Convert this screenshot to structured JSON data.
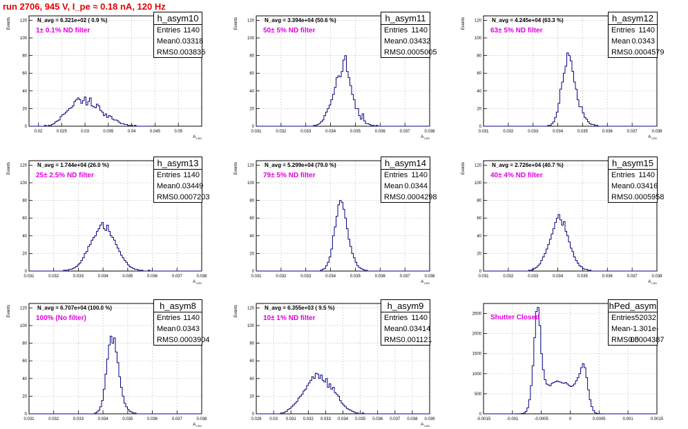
{
  "run_title": "run 2706,   945 V, I_pe ≈ 0.18 nA, 120 Hz",
  "colors": {
    "line": "#000080",
    "grid": "#c8c8c8",
    "filter_text": "#e000e0",
    "title": "#e00000"
  },
  "chart_data": [
    {
      "type": "histogram",
      "name": "h_asym10",
      "ylabel": "Events",
      "xlabel": "A_{LED}",
      "navg": "N_avg = 6.321e+02 ( 0.9 %)",
      "filter": "1± 0.1% ND filter",
      "stats": {
        "entries": "1140",
        "mean": "0.03318",
        "rms": "0.003836"
      },
      "xlim": [
        0.018,
        0.055
      ],
      "ylim": [
        0,
        125
      ],
      "xticks": [
        0.02,
        0.025,
        0.03,
        0.035,
        0.04,
        0.045,
        0.05
      ],
      "xtick_labels": [
        "0.02",
        "0.025",
        "0.03",
        "0.035",
        "0.04",
        "0.045",
        "0.05"
      ],
      "yticks": [
        0,
        20,
        40,
        60,
        80,
        100,
        120
      ],
      "ytick_labels": [
        "0",
        "20",
        "40",
        "60",
        "80",
        "100",
        "120"
      ],
      "bin_start": 0.018,
      "bin_width": 0.00037,
      "counts": [
        0,
        0,
        0,
        0,
        0,
        0,
        0,
        0,
        0,
        1,
        0,
        1,
        1,
        2,
        3,
        5,
        6,
        7,
        11,
        13,
        14,
        16,
        18,
        20,
        21,
        23,
        28,
        30,
        32,
        30,
        26,
        29,
        33,
        24,
        28,
        32,
        23,
        22,
        21,
        25,
        23,
        18,
        16,
        12,
        14,
        10,
        12,
        11,
        8,
        7,
        7,
        6,
        4,
        3,
        3,
        2,
        2,
        1,
        1,
        1,
        0,
        1,
        0,
        0,
        0,
        0,
        0,
        0,
        0,
        0
      ]
    },
    {
      "type": "histogram",
      "name": "h_asym11",
      "ylabel": "Events",
      "xlabel": "A_{LED}",
      "navg": "N_avg = 3.394e+04 (50.6 %)",
      "filter": "50± 5% ND filter",
      "stats": {
        "entries": "1140",
        "mean": "0.03432",
        "rms": "0.0005005"
      },
      "xlim": [
        0.031,
        0.038
      ],
      "ylim": [
        0,
        125
      ],
      "xticks": [
        0.031,
        0.032,
        0.033,
        0.034,
        0.035,
        0.036,
        0.037,
        0.038
      ],
      "xtick_labels": [
        "0.031",
        "0.032",
        "0.033",
        "0.034",
        "0.035",
        "0.036",
        "0.037",
        "0.038"
      ],
      "yticks": [
        0,
        20,
        40,
        60,
        80,
        100,
        120
      ],
      "ytick_labels": [
        "0",
        "20",
        "40",
        "60",
        "80",
        "100",
        "120"
      ],
      "bin_start": 0.031,
      "bin_width": 7e-05,
      "counts": [
        0,
        0,
        0,
        0,
        0,
        0,
        0,
        0,
        0,
        0,
        0,
        0,
        0,
        0,
        0,
        0,
        0,
        0,
        0,
        0,
        0,
        0,
        0,
        0,
        0,
        0,
        0,
        0,
        0,
        0,
        0,
        0,
        0,
        1,
        1,
        2,
        3,
        5,
        7,
        12,
        16,
        20,
        24,
        30,
        36,
        44,
        55,
        57,
        56,
        62,
        75,
        80,
        62,
        55,
        46,
        36,
        30,
        20,
        20,
        12,
        8,
        14,
        6,
        3,
        3,
        2,
        1,
        1,
        0,
        1,
        0,
        0,
        0,
        0,
        0,
        0,
        0,
        0,
        0,
        0,
        0,
        0,
        0,
        0,
        0,
        0,
        0,
        0,
        0,
        0,
        0,
        0,
        0,
        0,
        0,
        0,
        0,
        0,
        0,
        0
      ]
    },
    {
      "type": "histogram",
      "name": "h_asym12",
      "ylabel": "Events",
      "xlabel": "A_{LED}",
      "navg": "N_avg = 4.245e+04 (63.3 %)",
      "filter": "63± 5% ND filter",
      "stats": {
        "entries": "1140",
        "mean": "0.0343",
        "rms": "0.0004579"
      },
      "xlim": [
        0.031,
        0.038
      ],
      "ylim": [
        0,
        125
      ],
      "xticks": [
        0.031,
        0.032,
        0.033,
        0.034,
        0.035,
        0.036,
        0.037,
        0.038
      ],
      "xtick_labels": [
        "0.031",
        "0.032",
        "0.033",
        "0.034",
        "0.035",
        "0.036",
        "0.037",
        "0.038"
      ],
      "yticks": [
        0,
        20,
        40,
        60,
        80,
        100,
        120
      ],
      "ytick_labels": [
        "0",
        "20",
        "40",
        "60",
        "80",
        "100",
        "120"
      ],
      "bin_start": 0.031,
      "bin_width": 7e-05,
      "counts": [
        0,
        0,
        0,
        0,
        0,
        0,
        0,
        0,
        0,
        0,
        0,
        0,
        0,
        0,
        0,
        0,
        0,
        0,
        0,
        0,
        0,
        0,
        0,
        0,
        0,
        0,
        0,
        0,
        0,
        0,
        0,
        0,
        0,
        0,
        0,
        0,
        0,
        1,
        1,
        3,
        5,
        10,
        16,
        26,
        42,
        50,
        60,
        68,
        83,
        80,
        74,
        62,
        50,
        42,
        30,
        22,
        22,
        15,
        10,
        8,
        5,
        3,
        2,
        2,
        1,
        1,
        0,
        0,
        0,
        0,
        0,
        0,
        0,
        0,
        0,
        0,
        0,
        0,
        0,
        0,
        0,
        0,
        0,
        0,
        0,
        0,
        0,
        0,
        0,
        0,
        0,
        0,
        0,
        0,
        0,
        0,
        0,
        0,
        0,
        0
      ]
    },
    {
      "type": "histogram",
      "name": "h_asym13",
      "ylabel": "Events",
      "xlabel": "A_{LED}",
      "navg": "N_avg = 1.744e+04 (26.0 %)",
      "filter": "25± 2.5% ND filter",
      "stats": {
        "entries": "1140",
        "mean": "0.03449",
        "rms": "0.0007203"
      },
      "xlim": [
        0.031,
        0.038
      ],
      "ylim": [
        0,
        125
      ],
      "xticks": [
        0.031,
        0.032,
        0.033,
        0.034,
        0.035,
        0.036,
        0.037,
        0.038
      ],
      "xtick_labels": [
        "0.031",
        "0.032",
        "0.033",
        "0.034",
        "0.035",
        "0.036",
        "0.037",
        "0.038"
      ],
      "yticks": [
        0,
        20,
        40,
        60,
        80,
        100,
        120
      ],
      "ytick_labels": [
        "0",
        "20",
        "40",
        "60",
        "80",
        "100",
        "120"
      ],
      "bin_start": 0.031,
      "bin_width": 7e-05,
      "counts": [
        0,
        0,
        0,
        0,
        0,
        0,
        0,
        0,
        0,
        0,
        0,
        0,
        0,
        0,
        0,
        0,
        0,
        0,
        0,
        0,
        1,
        1,
        1,
        2,
        2,
        3,
        4,
        5,
        7,
        9,
        12,
        15,
        20,
        22,
        28,
        30,
        35,
        38,
        40,
        45,
        48,
        52,
        55,
        48,
        46,
        52,
        45,
        40,
        38,
        35,
        30,
        26,
        22,
        18,
        15,
        12,
        10,
        7,
        5,
        4,
        3,
        2,
        2,
        1,
        1,
        1,
        0,
        0,
        0,
        1,
        0,
        0,
        0,
        0,
        0,
        0,
        0,
        0,
        0,
        0,
        0,
        0,
        0,
        0,
        0,
        0,
        0,
        0,
        0,
        0,
        0,
        0,
        0,
        0,
        0,
        0,
        0,
        0,
        0,
        0
      ]
    },
    {
      "type": "histogram",
      "name": "h_asym14",
      "ylabel": "Events",
      "xlabel": "A_{LED}",
      "navg": "N_avg = 5.299e+04 (79.0 %)",
      "filter": "79± 5% ND filter",
      "stats": {
        "entries": "1140",
        "mean": "0.0344",
        "rms": "0.0004298"
      },
      "xlim": [
        0.031,
        0.038
      ],
      "ylim": [
        0,
        125
      ],
      "xticks": [
        0.031,
        0.032,
        0.033,
        0.034,
        0.035,
        0.036,
        0.037,
        0.038
      ],
      "xtick_labels": [
        "0.031",
        "0.032",
        "0.033",
        "0.034",
        "0.035",
        "0.036",
        "0.037",
        "0.038"
      ],
      "yticks": [
        0,
        20,
        40,
        60,
        80,
        100,
        120
      ],
      "ytick_labels": [
        "0",
        "20",
        "40",
        "60",
        "80",
        "100",
        "120"
      ],
      "bin_start": 0.031,
      "bin_width": 7e-05,
      "counts": [
        0,
        0,
        0,
        0,
        0,
        0,
        0,
        0,
        0,
        0,
        0,
        0,
        0,
        0,
        0,
        0,
        0,
        0,
        0,
        0,
        0,
        0,
        0,
        0,
        0,
        0,
        0,
        0,
        0,
        0,
        0,
        0,
        0,
        0,
        0,
        0,
        0,
        1,
        2,
        3,
        6,
        10,
        16,
        25,
        40,
        50,
        62,
        75,
        80,
        78,
        70,
        60,
        48,
        36,
        28,
        20,
        15,
        10,
        6,
        4,
        3,
        2,
        1,
        1,
        0,
        0,
        0,
        0,
        0,
        0,
        0,
        0,
        0,
        0,
        0,
        0,
        0,
        0,
        0,
        0,
        0,
        0,
        0,
        0,
        0,
        0,
        0,
        0,
        0,
        0,
        0,
        0,
        0,
        0,
        0,
        0,
        0,
        0,
        0,
        0
      ]
    },
    {
      "type": "histogram",
      "name": "h_asym15",
      "ylabel": "Events",
      "xlabel": "A_{LED}",
      "navg": "N_avg = 2.726e+04 (40.7 %)",
      "filter": "40± 4% ND filter",
      "stats": {
        "entries": "1140",
        "mean": "0.03416",
        "rms": "0.0005958"
      },
      "xlim": [
        0.031,
        0.038
      ],
      "ylim": [
        0,
        125
      ],
      "xticks": [
        0.031,
        0.032,
        0.033,
        0.034,
        0.035,
        0.036,
        0.037,
        0.038
      ],
      "xtick_labels": [
        "0.031",
        "0.032",
        "0.033",
        "0.034",
        "0.035",
        "0.036",
        "0.037",
        "0.038"
      ],
      "yticks": [
        0,
        20,
        40,
        60,
        80,
        100,
        120
      ],
      "ytick_labels": [
        "0",
        "20",
        "40",
        "60",
        "80",
        "100",
        "120"
      ],
      "bin_start": 0.031,
      "bin_width": 7e-05,
      "counts": [
        0,
        0,
        0,
        0,
        0,
        0,
        0,
        0,
        0,
        0,
        0,
        0,
        0,
        0,
        0,
        0,
        0,
        0,
        0,
        0,
        0,
        0,
        0,
        0,
        0,
        0,
        1,
        1,
        2,
        3,
        4,
        6,
        8,
        12,
        16,
        20,
        25,
        30,
        36,
        42,
        48,
        55,
        60,
        64,
        58,
        52,
        56,
        45,
        40,
        33,
        26,
        22,
        16,
        12,
        9,
        6,
        5,
        3,
        2,
        2,
        1,
        1,
        0,
        0,
        0,
        0,
        0,
        0,
        0,
        0,
        0,
        0,
        0,
        0,
        0,
        0,
        0,
        0,
        0,
        0,
        0,
        0,
        0,
        0,
        0,
        0,
        0,
        0,
        0,
        0,
        0,
        0,
        0,
        0,
        0,
        0,
        0,
        0,
        0,
        0
      ]
    },
    {
      "type": "histogram",
      "name": "h_asym8",
      "ylabel": "Events",
      "xlabel": "A_{LED}",
      "navg": "N_avg = 6.707e+04 (100.0 %)",
      "filter": "100% (No filter)",
      "stats": {
        "entries": "1140",
        "mean": "0.0343",
        "rms": "0.0003904"
      },
      "xlim": [
        0.031,
        0.038
      ],
      "ylim": [
        0,
        125
      ],
      "xticks": [
        0.031,
        0.032,
        0.033,
        0.034,
        0.035,
        0.036,
        0.037,
        0.038
      ],
      "xtick_labels": [
        "0.031",
        "0.032",
        "0.033",
        "0.034",
        "0.035",
        "0.036",
        "0.037",
        "0.038"
      ],
      "yticks": [
        0,
        20,
        40,
        60,
        80,
        100,
        120
      ],
      "ytick_labels": [
        "0",
        "20",
        "40",
        "60",
        "80",
        "100",
        "120"
      ],
      "bin_start": 0.031,
      "bin_width": 7e-05,
      "counts": [
        0,
        0,
        0,
        0,
        0,
        0,
        0,
        0,
        0,
        0,
        0,
        0,
        0,
        0,
        0,
        0,
        0,
        0,
        0,
        0,
        0,
        0,
        0,
        0,
        0,
        0,
        0,
        0,
        0,
        0,
        0,
        0,
        0,
        0,
        0,
        0,
        0,
        0,
        1,
        2,
        4,
        8,
        15,
        28,
        45,
        62,
        78,
        88,
        80,
        86,
        70,
        58,
        42,
        30,
        20,
        12,
        8,
        5,
        3,
        2,
        1,
        1,
        0,
        0,
        0,
        0,
        0,
        0,
        0,
        0,
        0,
        0,
        0,
        0,
        0,
        0,
        0,
        0,
        0,
        0,
        0,
        0,
        0,
        0,
        0,
        0,
        0,
        0,
        0,
        0,
        0,
        0,
        0,
        0,
        0,
        0,
        0,
        0,
        0,
        0
      ]
    },
    {
      "type": "histogram",
      "name": "h_asym9",
      "ylabel": "Events",
      "xlabel": "A_{LED}",
      "navg": "N_avg = 6.355e+03 ( 9.5 %)",
      "filter": "10± 1% ND filter",
      "stats": {
        "entries": "1140",
        "mean": "0.03414",
        "rms": "0.001121"
      },
      "xlim": [
        0.029,
        0.039
      ],
      "ylim": [
        0,
        125
      ],
      "xticks": [
        0.029,
        0.03,
        0.031,
        0.032,
        0.033,
        0.034,
        0.035,
        0.036,
        0.037,
        0.038,
        0.039
      ],
      "xtick_labels": [
        "0.029",
        "0.03",
        "0.031",
        "0.032",
        "0.033",
        "0.034",
        "0.035",
        "0.036",
        "0.037",
        "0.038",
        "0.039"
      ],
      "yticks": [
        0,
        20,
        40,
        60,
        80,
        100,
        120
      ],
      "ytick_labels": [
        "0",
        "20",
        "40",
        "60",
        "80",
        "100",
        "120"
      ],
      "bin_start": 0.029,
      "bin_width": 0.0001,
      "counts": [
        0,
        0,
        0,
        0,
        0,
        0,
        0,
        0,
        0,
        0,
        0,
        0,
        0,
        0,
        1,
        1,
        2,
        3,
        5,
        6,
        8,
        10,
        12,
        14,
        18,
        20,
        22,
        26,
        28,
        32,
        35,
        38,
        42,
        40,
        46,
        45,
        40,
        44,
        38,
        36,
        40,
        30,
        34,
        28,
        30,
        24,
        22,
        20,
        15,
        12,
        10,
        8,
        6,
        5,
        4,
        3,
        2,
        1,
        1,
        0,
        0,
        1,
        0,
        0,
        0,
        0,
        0,
        0,
        0,
        0,
        0,
        0,
        0,
        0,
        0,
        0,
        0,
        0,
        0,
        0,
        0,
        0,
        0,
        0,
        0,
        0,
        0,
        0,
        0,
        0,
        0,
        0,
        0,
        0,
        0,
        0,
        0,
        0,
        0,
        0
      ]
    },
    {
      "type": "histogram",
      "name": "hPed_asym",
      "ylabel": "",
      "xlabel": "",
      "navg": "",
      "filter": "Shutter Closed",
      "stats": {
        "entries": "52032",
        "mean": "-1.301e-05",
        "rms": "0.0004387"
      },
      "xlim": [
        -0.0015,
        0.0015
      ],
      "ylim": [
        0,
        2750
      ],
      "xticks": [
        -0.0015,
        -0.001,
        -0.0005,
        0,
        0.0005,
        0.001,
        0.0015
      ],
      "xtick_labels": [
        "-0.0015",
        "-0.001",
        "-0.0005",
        "0",
        "0.0005",
        "0.001",
        "0.0015"
      ],
      "yticks": [
        0,
        500,
        1000,
        1500,
        2000,
        2500
      ],
      "ytick_labels": [
        "0",
        "500",
        "1000",
        "1500",
        "2000",
        "2500"
      ],
      "bin_start": -0.0015,
      "bin_width": 3e-05,
      "counts": [
        0,
        0,
        0,
        0,
        0,
        0,
        0,
        0,
        0,
        0,
        0,
        0,
        0,
        0,
        0,
        0,
        0,
        0,
        0,
        1,
        2,
        4,
        8,
        20,
        60,
        150,
        350,
        700,
        1200,
        1900,
        2550,
        2650,
        2200,
        1500,
        1100,
        850,
        740,
        720,
        700,
        760,
        780,
        800,
        820,
        800,
        790,
        770,
        760,
        780,
        740,
        700,
        680,
        700,
        740,
        820,
        900,
        1000,
        1150,
        1250,
        1150,
        900,
        600,
        350,
        180,
        80,
        30,
        10,
        4,
        2,
        1,
        0,
        0,
        0,
        0,
        0,
        0,
        0,
        0,
        0,
        0,
        0,
        0,
        0,
        0,
        0,
        0,
        0,
        0,
        0,
        0,
        0,
        0,
        0,
        0,
        0,
        0,
        0,
        0,
        0,
        0,
        0
      ]
    }
  ]
}
